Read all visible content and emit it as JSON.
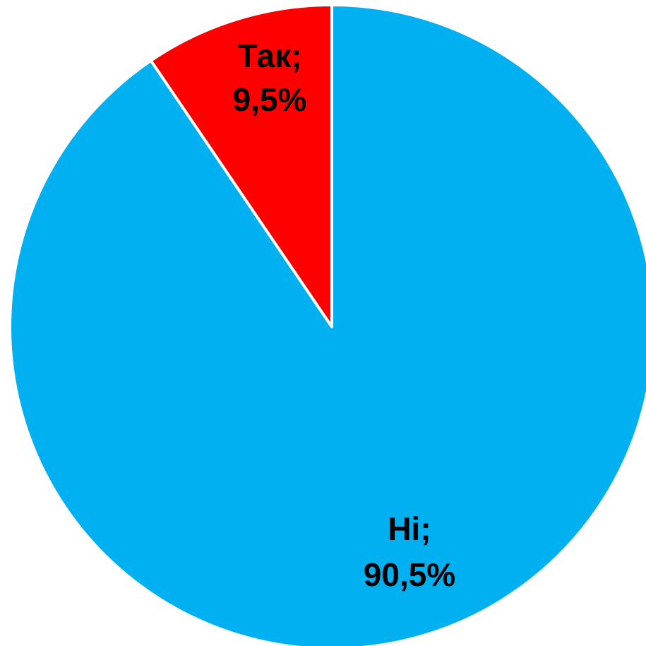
{
  "chart_data": {
    "type": "pie",
    "title": "",
    "start": "top",
    "direction": "counterclockwise",
    "slices": [
      {
        "label": "Так",
        "value": 9.5,
        "display": "9,5%",
        "color": "#ff0000"
      },
      {
        "label": "Ні",
        "value": 90.5,
        "display": "90,5%",
        "color": "#00b0f0"
      }
    ],
    "slice_border_color": "#ffffff",
    "legend": "none"
  }
}
